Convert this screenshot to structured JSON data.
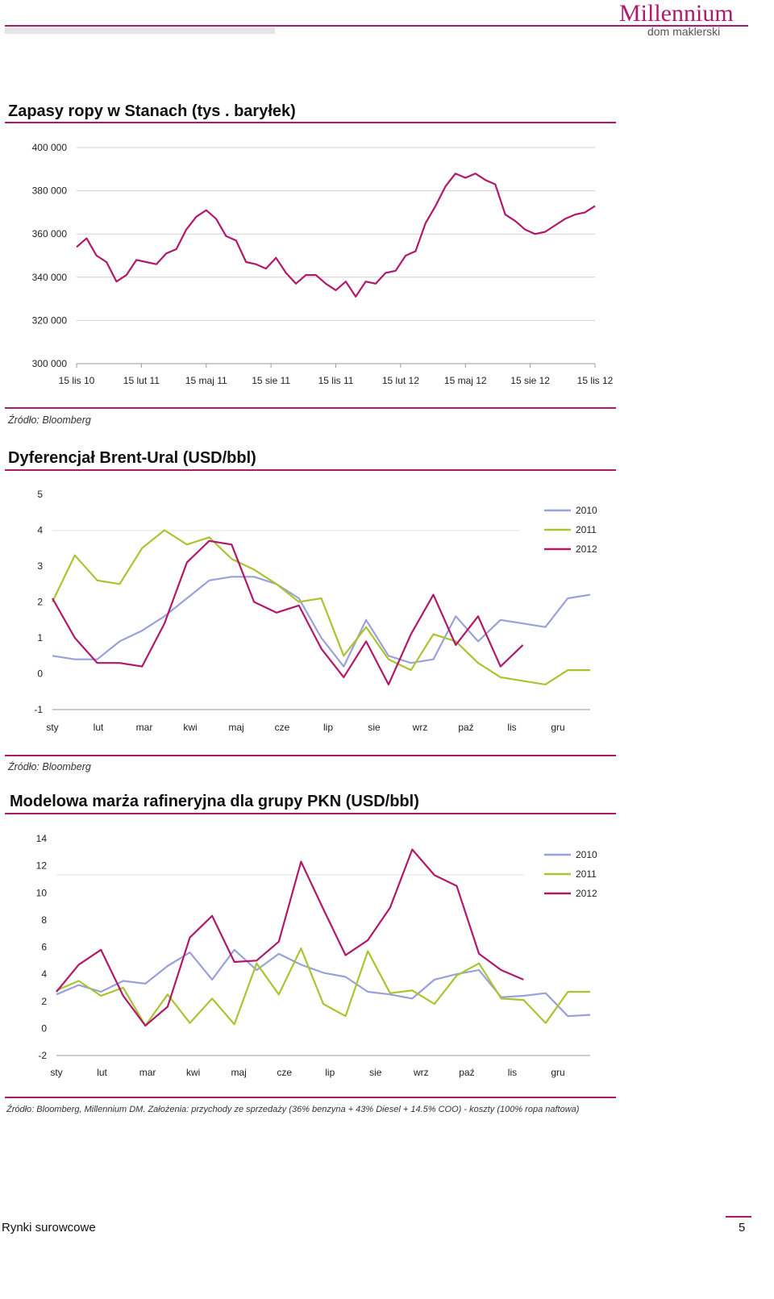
{
  "header": {
    "logo_main": "Millennium",
    "logo_sub": "dom maklerski",
    "brand_color": "#b0196a"
  },
  "chart_data": [
    {
      "type": "line",
      "title": "Zapasy ropy w Stanach (tys . baryłek)",
      "source": "Źródło: Bloomberg",
      "ylim": [
        300000,
        400000
      ],
      "y_ticks": [
        "400 000",
        "380 000",
        "360 000",
        "340 000",
        "320 000",
        "300 000"
      ],
      "x_ticks": [
        "15 lis 10",
        "15 lut 11",
        "15 maj 11",
        "15 sie 11",
        "15 lis 11",
        "15 lut 12",
        "15 maj 12",
        "15 sie 12",
        "15 lis 12"
      ],
      "grid": true,
      "color": "#b0196a",
      "x_range": [
        0,
        104
      ],
      "x": [
        0,
        2,
        4,
        6,
        8,
        10,
        12,
        14,
        16,
        18,
        20,
        22,
        24,
        26,
        28,
        30,
        32,
        34,
        36,
        38,
        40,
        42,
        44,
        46,
        48,
        50,
        52,
        54,
        56,
        58,
        60,
        62,
        64,
        66,
        68,
        70,
        72,
        74,
        76,
        78,
        80,
        82,
        84,
        86,
        88,
        90,
        92,
        94,
        96,
        98,
        100,
        102,
        104
      ],
      "values": [
        354000,
        358000,
        350000,
        347000,
        338000,
        341000,
        348000,
        347000,
        346000,
        351000,
        353000,
        362000,
        368000,
        371000,
        367000,
        359000,
        357000,
        347000,
        346000,
        344000,
        349000,
        342000,
        337000,
        341000,
        341000,
        337000,
        334000,
        338000,
        331000,
        338000,
        337000,
        342000,
        343000,
        350000,
        352000,
        365000,
        373000,
        382000,
        388000,
        386000,
        388000,
        385000,
        383000,
        369000,
        366000,
        362000,
        360000,
        361000,
        364000,
        367000,
        369000,
        370000,
        373000
      ]
    },
    {
      "type": "line",
      "title": "Dyferencjał Brent-Ural (USD/bbl)",
      "source": "Źródło: Bloomberg",
      "ylim": [
        -1,
        5
      ],
      "y_ticks": [
        "5",
        "4",
        "3",
        "2",
        "1",
        "0",
        "-1"
      ],
      "x_ticks": [
        "sty",
        "lut",
        "mar",
        "kwi",
        "maj",
        "cze",
        "lip",
        "sie",
        "wrz",
        "paź",
        "lis",
        "gru"
      ],
      "x_range": [
        0,
        12
      ],
      "legend_position": "right",
      "x": [
        0,
        0.5,
        1,
        1.5,
        2,
        2.5,
        3,
        3.5,
        4,
        4.5,
        5,
        5.5,
        6,
        6.5,
        7,
        7.5,
        8,
        8.5,
        9,
        9.5,
        10,
        10.5,
        11,
        11.5,
        12
      ],
      "series": [
        {
          "name": "2010",
          "color": "#9aa0d8",
          "values": [
            0.5,
            0.4,
            0.4,
            0.9,
            1.2,
            1.6,
            2.1,
            2.6,
            2.7,
            2.7,
            2.5,
            2.1,
            1.0,
            0.2,
            1.5,
            0.5,
            0.3,
            0.4,
            1.6,
            0.9,
            1.5,
            1.4,
            1.3,
            2.1,
            2.2
          ]
        },
        {
          "name": "2011",
          "color": "#a8c531",
          "values": [
            2.0,
            3.3,
            2.6,
            2.5,
            3.5,
            4.0,
            3.6,
            3.8,
            3.2,
            2.9,
            2.5,
            2.0,
            2.1,
            0.5,
            1.3,
            0.4,
            0.1,
            1.1,
            0.9,
            0.3,
            -0.1,
            -0.2,
            -0.3,
            0.1,
            0.1
          ]
        },
        {
          "name": "2012",
          "color": "#b0196a",
          "values": [
            2.1,
            1.0,
            0.3,
            0.3,
            0.2,
            1.4,
            3.1,
            3.7,
            3.6,
            2.0,
            1.7,
            1.9,
            0.7,
            -0.1,
            0.9,
            -0.3,
            1.1,
            2.2,
            0.8,
            1.6,
            0.2,
            0.8,
            null,
            null,
            null
          ]
        }
      ]
    },
    {
      "type": "line",
      "title": "Modelowa marża rafineryjna dla grupy PKN (USD/bbl)",
      "source": "Źródło: Bloomberg, Millennium DM. Założenia: przychody ze sprzedaży (36% benzyna + 43% Diesel + 14.5% COO) - koszty (100% ropa naftowa)",
      "ylim": [
        -2,
        14
      ],
      "y_ticks": [
        "14",
        "12",
        "10",
        "8",
        "6",
        "4",
        "2",
        "0",
        "-2"
      ],
      "x_ticks": [
        "sty",
        "lut",
        "mar",
        "kwi",
        "maj",
        "cze",
        "lip",
        "sie",
        "wrz",
        "paź",
        "lis",
        "gru"
      ],
      "x_range": [
        0,
        12
      ],
      "legend_position": "right",
      "x": [
        0,
        0.5,
        1,
        1.5,
        2,
        2.5,
        3,
        3.5,
        4,
        4.5,
        5,
        5.5,
        6,
        6.5,
        7,
        7.5,
        8,
        8.5,
        9,
        9.5,
        10,
        10.5,
        11,
        11.5,
        12
      ],
      "series": [
        {
          "name": "2010",
          "color": "#9aa0d8",
          "values": [
            2.5,
            3.2,
            2.7,
            3.5,
            3.3,
            4.6,
            5.6,
            3.6,
            5.8,
            4.3,
            5.5,
            4.7,
            4.1,
            3.8,
            2.7,
            2.5,
            2.2,
            3.6,
            4.0,
            4.3,
            2.3,
            2.4,
            2.6,
            0.9,
            1.0
          ]
        },
        {
          "name": "2011",
          "color": "#a8c531",
          "values": [
            2.8,
            3.5,
            2.4,
            3.0,
            0.2,
            2.5,
            0.4,
            2.2,
            0.3,
            4.8,
            2.5,
            5.9,
            1.8,
            0.9,
            5.7,
            2.6,
            2.8,
            1.8,
            3.9,
            4.8,
            2.2,
            2.1,
            0.4,
            2.7,
            2.7
          ]
        },
        {
          "name": "2012",
          "color": "#b0196a",
          "values": [
            2.7,
            4.7,
            5.8,
            2.4,
            0.2,
            1.6,
            6.7,
            8.3,
            4.9,
            5.0,
            6.4,
            12.3,
            8.8,
            5.4,
            6.5,
            8.9,
            13.2,
            11.3,
            10.5,
            5.5,
            4.3,
            3.6,
            null,
            null,
            null
          ]
        }
      ]
    }
  ],
  "footer": {
    "section_label": "Rynki surowcowe",
    "page_number": "5"
  }
}
